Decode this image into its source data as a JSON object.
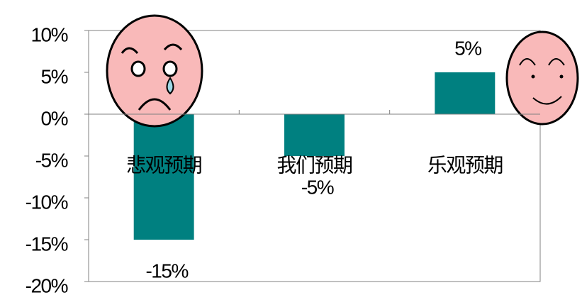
{
  "chart_data": {
    "type": "bar",
    "categories": [
      "悲观预期",
      "我们预期",
      "乐观预期"
    ],
    "values": [
      -15,
      -5,
      5
    ],
    "value_labels": [
      "-15%",
      "-5%",
      "5%"
    ],
    "color": "#008080",
    "ylim": [
      -20,
      10
    ],
    "yticks": [
      {
        "value": 10,
        "label": "10%"
      },
      {
        "value": 5,
        "label": "5%"
      },
      {
        "value": 0,
        "label": "0%"
      },
      {
        "value": -5,
        "label": "-5%"
      },
      {
        "value": -10,
        "label": "-10%"
      },
      {
        "value": -15,
        "label": "-15%"
      },
      {
        "value": -20,
        "label": "-20%"
      }
    ],
    "grid": false
  }
}
